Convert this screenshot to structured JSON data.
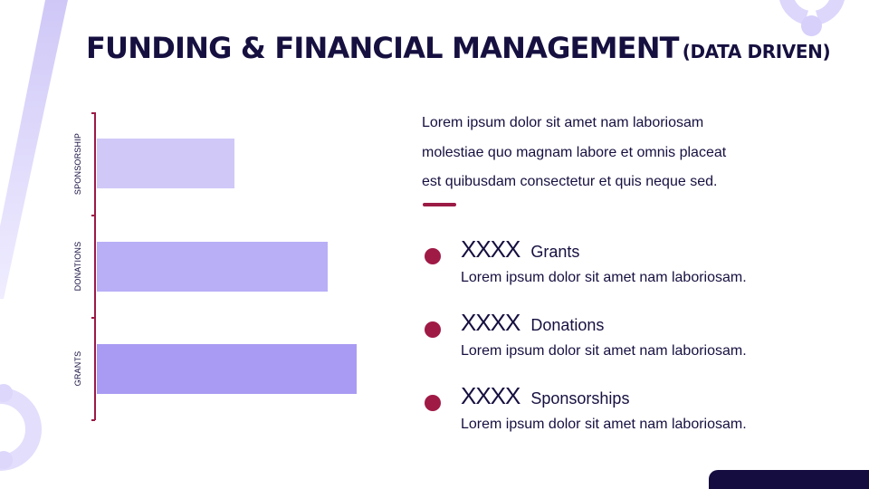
{
  "header": {
    "title": "FUNDING & FINANCIAL MANAGEMENT",
    "subtitle": "(DATA DRIVEN)"
  },
  "intro": {
    "lines": [
      "Lorem ipsum dolor sit amet nam laboriosam",
      "molestiae quo magnam labore et omnis placeat",
      "est quibusdam consectetur et quis neque sed."
    ]
  },
  "list": [
    {
      "value": "XXXX",
      "label": "Grants",
      "description": "Lorem ipsum dolor sit amet nam laboriosam."
    },
    {
      "value": "XXXX",
      "label": "Donations",
      "description": "Lorem ipsum dolor sit amet nam laboriosam."
    },
    {
      "value": "XXXX",
      "label": "Sponsorships",
      "description": "Lorem ipsum dolor sit amet nam laboriosam."
    }
  ],
  "colors": {
    "title": "#161040",
    "accent": "#9b1b45",
    "bar_sponsorship": "#d0c9f8",
    "bar_donations": "#b8aff6",
    "bar_grants": "#a99bf3",
    "navy": "#150d40",
    "lavender_deco": "#dcd7fb"
  },
  "chart_data": {
    "type": "bar",
    "orientation": "horizontal",
    "title": "",
    "xlabel": "",
    "ylabel": "",
    "categories": [
      "SPONSORSHIP",
      "DONATIONS",
      "GRANTS"
    ],
    "values": [
      152,
      255,
      287
    ],
    "value_note": "relative bar lengths (px); no numeric axis shown",
    "grid": false,
    "legend": "none",
    "bar_colors": [
      "#d0c9f8",
      "#b8aff6",
      "#a99bf3"
    ]
  }
}
